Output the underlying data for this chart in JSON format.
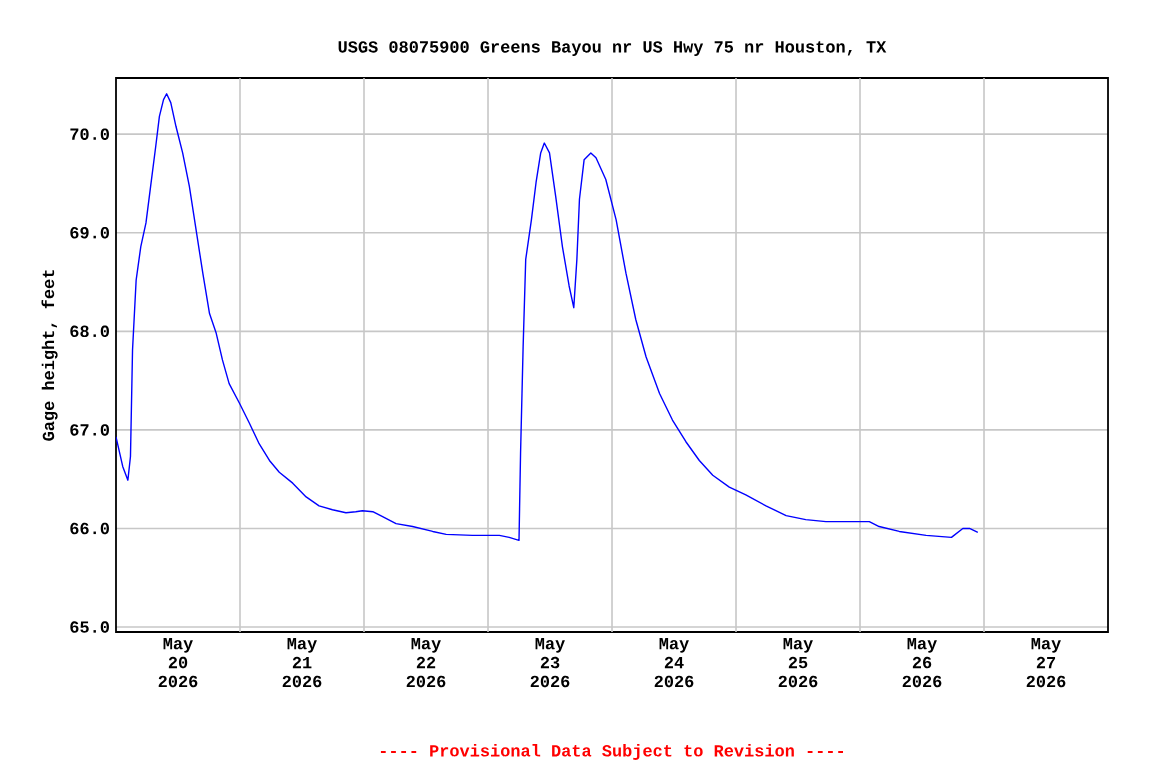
{
  "chart_data": {
    "type": "line",
    "title": "USGS 08075900 Greens Bayou nr US Hwy 75 nr Houston, TX",
    "ylabel": "Gage height, feet",
    "annotations": [
      "---- Provisional Data Subject to Revision ----"
    ],
    "x": [
      "2026-05-20T00:00",
      "2026-05-20T01:18",
      "2026-05-20T02:18",
      "2026-05-20T02:48",
      "2026-05-20T03:12",
      "2026-05-20T03:54",
      "2026-05-20T04:48",
      "2026-05-20T05:48",
      "2026-05-20T06:42",
      "2026-05-20T07:42",
      "2026-05-20T08:24",
      "2026-05-20T09:12",
      "2026-05-20T09:48",
      "2026-05-20T10:36",
      "2026-05-20T11:36",
      "2026-05-20T12:54",
      "2026-05-20T14:12",
      "2026-05-20T15:30",
      "2026-05-20T16:48",
      "2026-05-20T18:06",
      "2026-05-20T19:24",
      "2026-05-20T20:36",
      "2026-05-20T21:54",
      "2026-05-20T23:54",
      "2026-05-21T01:48",
      "2026-05-21T03:42",
      "2026-05-21T05:42",
      "2026-05-21T07:36",
      "2026-05-21T10:12",
      "2026-05-21T12:48",
      "2026-05-21T15:18",
      "2026-05-21T17:54",
      "2026-05-21T20:30",
      "2026-05-21T22:24",
      "2026-05-21T23:42",
      "2026-05-22T01:42",
      "2026-05-22T03:36",
      "2026-05-22T06:12",
      "2026-05-22T09:24",
      "2026-05-22T13:18",
      "2026-05-22T15:54",
      "2026-05-22T21:00",
      "2026-05-23T02:12",
      "2026-05-23T04:06",
      "2026-05-23T06:00",
      "2026-05-23T06:18",
      "2026-05-23T06:48",
      "2026-05-23T07:18",
      "2026-05-23T08:24",
      "2026-05-23T09:18",
      "2026-05-23T10:12",
      "2026-05-23T10:54",
      "2026-05-23T11:54",
      "2026-05-23T13:06",
      "2026-05-23T14:24",
      "2026-05-23T15:42",
      "2026-05-23T16:36",
      "2026-05-23T17:12",
      "2026-05-23T17:42",
      "2026-05-23T18:36",
      "2026-05-23T19:54",
      "2026-05-23T20:54",
      "2026-05-23T22:48",
      "2026-05-24T00:48",
      "2026-05-24T02:42",
      "2026-05-24T04:36",
      "2026-05-24T06:36",
      "2026-05-24T09:12",
      "2026-05-24T11:42",
      "2026-05-24T14:18",
      "2026-05-24T16:54",
      "2026-05-24T19:30",
      "2026-05-24T22:42",
      "2026-05-25T01:54",
      "2026-05-25T05:48",
      "2026-05-25T09:42",
      "2026-05-25T13:30",
      "2026-05-25T17:24",
      "2026-05-25T21:18",
      "2026-05-26T01:48",
      "2026-05-26T03:42",
      "2026-05-26T07:36",
      "2026-05-26T12:48",
      "2026-05-26T17:42",
      "2026-05-26T19:54",
      "2026-05-26T21:12",
      "2026-05-26T22:48"
    ],
    "series": [
      {
        "color": "#0000ff",
        "values": [
          66.93,
          66.63,
          66.49,
          66.73,
          67.81,
          68.52,
          68.86,
          69.1,
          69.47,
          69.88,
          70.18,
          70.35,
          70.41,
          70.32,
          70.08,
          69.81,
          69.47,
          69.03,
          68.59,
          68.18,
          67.98,
          67.71,
          67.47,
          67.27,
          67.07,
          66.86,
          66.69,
          66.57,
          66.46,
          66.32,
          66.23,
          66.19,
          66.16,
          66.17,
          66.18,
          66.17,
          66.12,
          66.05,
          66.02,
          65.97,
          65.94,
          65.93,
          65.93,
          65.91,
          65.88,
          66.76,
          67.85,
          68.73,
          69.13,
          69.51,
          69.81,
          69.91,
          69.81,
          69.37,
          68.86,
          68.46,
          68.24,
          68.73,
          69.34,
          69.74,
          69.81,
          69.76,
          69.54,
          69.13,
          68.59,
          68.12,
          67.74,
          67.37,
          67.1,
          66.88,
          66.69,
          66.54,
          66.42,
          66.34,
          66.23,
          66.13,
          66.09,
          66.07,
          66.07,
          66.07,
          66.02,
          65.97,
          65.93,
          65.91,
          66.0,
          66.0,
          65.96
        ]
      }
    ],
    "xlim": [
      "2026-05-20",
      "2026-05-28"
    ],
    "xticks": [
      {
        "value": "2026-05-20T12:00",
        "label": "May 20 2026"
      },
      {
        "value": "2026-05-21T12:00",
        "label": "May 21 2026"
      },
      {
        "value": "2026-05-22T12:00",
        "label": "May 22 2026"
      },
      {
        "value": "2026-05-23T12:00",
        "label": "May 23 2026"
      },
      {
        "value": "2026-05-24T12:00",
        "label": "May 24 2026"
      },
      {
        "value": "2026-05-25T12:00",
        "label": "May 25 2026"
      },
      {
        "value": "2026-05-26T12:00",
        "label": "May 26 2026"
      },
      {
        "value": "2026-05-27T12:00",
        "label": "May 27 2026"
      },
      {
        "value": "2026-05-21",
        "label": null
      },
      {
        "value": "2026-05-22",
        "label": null
      },
      {
        "value": "2026-05-23",
        "label": null
      },
      {
        "value": "2026-05-24",
        "label": null
      },
      {
        "value": "2026-05-25",
        "label": null
      },
      {
        "value": "2026-05-26",
        "label": null
      },
      {
        "value": "2026-05-27",
        "label": null
      }
    ],
    "ylim": [
      64.95,
      70.57
    ],
    "yticks": [
      {
        "value": 65,
        "label": "65.0"
      },
      {
        "value": 66,
        "label": "66.0"
      },
      {
        "value": 67,
        "label": "67.0"
      },
      {
        "value": 68,
        "label": "68.0"
      },
      {
        "value": 69,
        "label": "69.0"
      },
      {
        "value": 70,
        "label": "70.0"
      }
    ],
    "grid": true,
    "marker": "none",
    "line_style": "solid"
  }
}
